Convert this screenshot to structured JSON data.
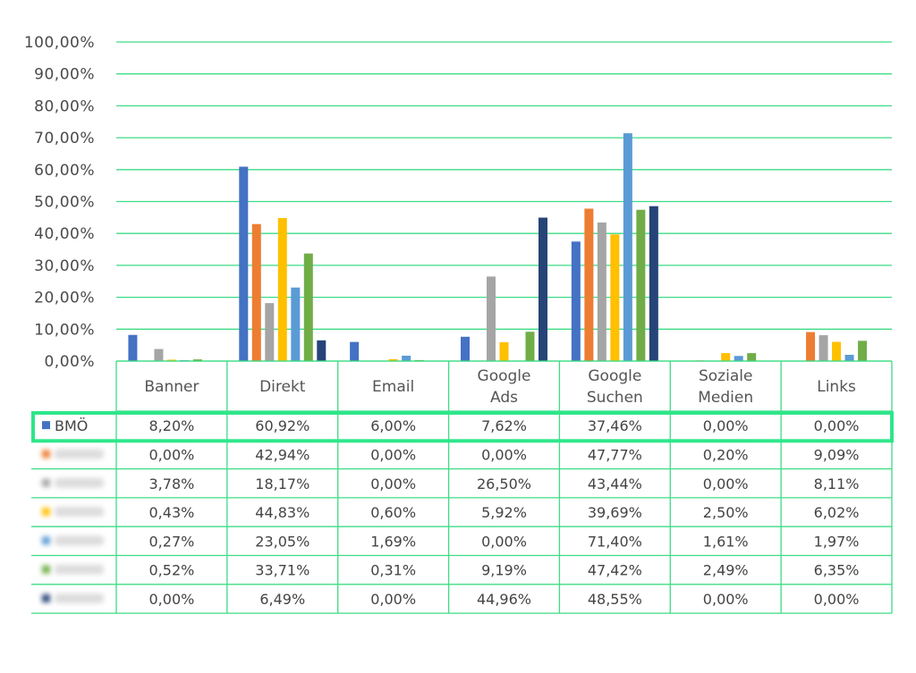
{
  "chart_data": {
    "type": "bar",
    "title": "",
    "xlabel": "",
    "ylabel": "",
    "ylim": [
      0,
      100
    ],
    "y_ticks": [
      "0,00%",
      "10,00%",
      "20,00%",
      "30,00%",
      "40,00%",
      "50,00%",
      "60,00%",
      "70,00%",
      "80,00%",
      "90,00%",
      "100,00%"
    ],
    "grid": true,
    "legend_placement": "data-table-left",
    "categories": [
      [
        "Banner"
      ],
      [
        "Direkt"
      ],
      [
        "Email"
      ],
      [
        "Google",
        "Ads"
      ],
      [
        "Google",
        "Suchen"
      ],
      [
        "Soziale",
        "Medien"
      ],
      [
        "Links"
      ]
    ],
    "series": [
      {
        "name": "BMÖ",
        "color": "#4472c4",
        "values": [
          8.2,
          60.92,
          6.0,
          7.62,
          37.46,
          0.0,
          0.0
        ],
        "labels": [
          "8,20%",
          "60,92%",
          "6,00%",
          "7,62%",
          "37,46%",
          "0,00%",
          "0,00%"
        ],
        "bar_values": [
          8.2,
          60.92,
          6.0,
          7.62,
          37.46,
          0.0,
          0.0
        ]
      },
      {
        "name": "",
        "color": "#ed7d31",
        "values": [
          0.0,
          42.94,
          0.0,
          0.0,
          47.77,
          0.2,
          9.09
        ],
        "labels": [
          "0,00%",
          "42,94%",
          "0,00%",
          "0,00%",
          "47,77%",
          "0,20%",
          "9,09%"
        ]
      },
      {
        "name": "",
        "color": "#a5a5a5",
        "values": [
          3.78,
          18.17,
          0.0,
          26.5,
          43.44,
          0.0,
          8.11
        ],
        "labels": [
          "3,78%",
          "18,17%",
          "0,00%",
          "26,50%",
          "43,44%",
          "0,00%",
          "8,11%"
        ]
      },
      {
        "name": "",
        "color": "#ffc000",
        "values": [
          0.43,
          44.83,
          0.6,
          5.92,
          39.69,
          2.5,
          6.02
        ],
        "labels": [
          "0,43%",
          "44,83%",
          "0,60%",
          "5,92%",
          "39,69%",
          "2,50%",
          "6,02%"
        ]
      },
      {
        "name": "",
        "color": "#5b9bd5",
        "values": [
          0.27,
          23.05,
          1.69,
          0.0,
          71.4,
          1.61,
          1.97
        ],
        "labels": [
          "0,27%",
          "23,05%",
          "1,69%",
          "0,00%",
          "71,40%",
          "1,61%",
          "1,97%"
        ]
      },
      {
        "name": "",
        "color": "#70ad47",
        "values": [
          0.52,
          33.71,
          0.31,
          9.19,
          47.42,
          2.49,
          6.35
        ],
        "labels": [
          "0,52%",
          "33,71%",
          "0,31%",
          "9,19%",
          "47,42%",
          "2,49%",
          "6,35%"
        ]
      },
      {
        "name": "",
        "color": "#264478",
        "values": [
          0.0,
          6.49,
          0.0,
          44.96,
          48.55,
          0.0,
          0.0
        ],
        "labels": [
          "0,00%",
          "6,49%",
          "0,00%",
          "44,96%",
          "48,55%",
          "0,00%",
          "0,00%"
        ]
      }
    ],
    "highlight_row": 0,
    "highlight_color": "#2ee68a",
    "grid_color": "#3ddc84",
    "table_border_color": "#3ddc84"
  }
}
